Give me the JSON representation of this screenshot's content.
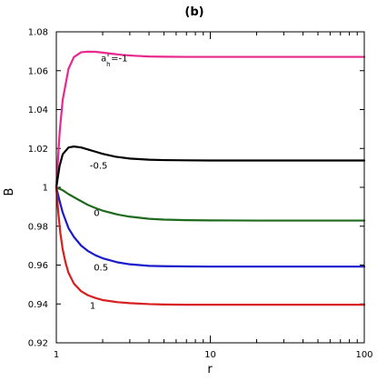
{
  "chart_data": {
    "type": "line",
    "title": "(b)",
    "xlabel": "r",
    "ylabel": "B",
    "x_scale": "log",
    "xlim": [
      1,
      100
    ],
    "ylim": [
      0.92,
      1.08
    ],
    "grid": false,
    "x_ticks": [
      {
        "value": 1,
        "label": "1"
      },
      {
        "value": 10,
        "label": "10"
      },
      {
        "value": 100,
        "label": "100"
      }
    ],
    "y_ticks": [
      {
        "value": 0.92,
        "label": "0.92"
      },
      {
        "value": 0.94,
        "label": "0.94"
      },
      {
        "value": 0.96,
        "label": "0.96"
      },
      {
        "value": 0.98,
        "label": "0.98"
      },
      {
        "value": 1.0,
        "label": "1"
      },
      {
        "value": 1.02,
        "label": "1.02"
      },
      {
        "value": 1.04,
        "label": "1.04"
      },
      {
        "value": 1.06,
        "label": "1.06"
      },
      {
        "value": 1.08,
        "label": "1.08"
      }
    ],
    "annotation_prefix": {
      "main": "a",
      "prime": "'",
      "sub": "h",
      "eq": "=-1"
    },
    "series": [
      {
        "label": "=-1",
        "color": "#e8288c",
        "x": [
          1,
          1.05,
          1.1,
          1.2,
          1.3,
          1.45,
          1.6,
          1.8,
          2.0,
          2.3,
          2.7,
          3.2,
          4,
          5,
          7,
          10,
          20,
          50,
          100
        ],
        "y": [
          1.0,
          1.028,
          1.045,
          1.061,
          1.067,
          1.0695,
          1.0698,
          1.0697,
          1.0693,
          1.0687,
          1.0681,
          1.0677,
          1.0673,
          1.0672,
          1.0671,
          1.0671,
          1.0671,
          1.0671,
          1.0671
        ]
      },
      {
        "label": "-0.5",
        "color": "#000000",
        "x": [
          1,
          1.05,
          1.1,
          1.2,
          1.3,
          1.45,
          1.6,
          1.8,
          2.0,
          2.4,
          3,
          4,
          5,
          7,
          10,
          20,
          50,
          100
        ],
        "y": [
          1.0,
          1.011,
          1.017,
          1.0205,
          1.021,
          1.0205,
          1.0195,
          1.0183,
          1.0172,
          1.0158,
          1.0148,
          1.0142,
          1.014,
          1.0139,
          1.0138,
          1.0138,
          1.0138,
          1.0138
        ]
      },
      {
        "label": "0",
        "color": "#1e6b1e",
        "x": [
          1,
          1.1,
          1.2,
          1.4,
          1.6,
          1.8,
          2.0,
          2.5,
          3,
          4,
          5,
          7,
          10,
          20,
          50,
          100
        ],
        "y": [
          1.0,
          0.9985,
          0.9965,
          0.9935,
          0.991,
          0.9893,
          0.988,
          0.986,
          0.9849,
          0.9838,
          0.9834,
          0.9831,
          0.983,
          0.9829,
          0.9829,
          0.9829
        ]
      },
      {
        "label": "0.5",
        "color": "#1a1acc",
        "x": [
          1,
          1.05,
          1.1,
          1.2,
          1.3,
          1.45,
          1.6,
          1.8,
          2.0,
          2.5,
          3,
          4,
          5,
          7,
          10,
          20,
          50,
          100
        ],
        "y": [
          1.0,
          0.993,
          0.987,
          0.979,
          0.9745,
          0.97,
          0.9673,
          0.965,
          0.9635,
          0.9614,
          0.9604,
          0.9596,
          0.9594,
          0.9593,
          0.9592,
          0.9592,
          0.9592,
          0.9592
        ]
      },
      {
        "label": "1",
        "color": "#d81e1e",
        "x": [
          1,
          1.03,
          1.06,
          1.1,
          1.15,
          1.2,
          1.3,
          1.45,
          1.6,
          1.8,
          2.0,
          2.5,
          3,
          4,
          5,
          7,
          10,
          20,
          50,
          100
        ],
        "y": [
          1.0,
          0.987,
          0.977,
          0.968,
          0.961,
          0.956,
          0.9505,
          0.9465,
          0.9445,
          0.943,
          0.942,
          0.9409,
          0.9404,
          0.9399,
          0.9397,
          0.9396,
          0.9396,
          0.9396,
          0.9396,
          0.9396
        ]
      }
    ]
  }
}
